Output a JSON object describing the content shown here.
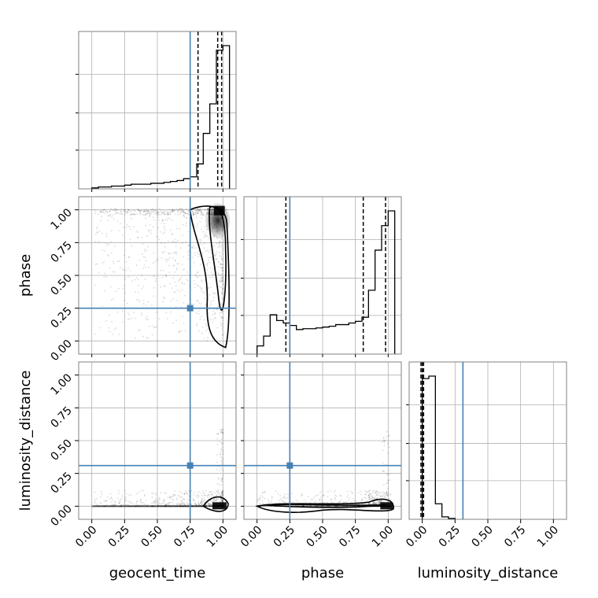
{
  "chart_data": {
    "type": "corner",
    "parameters": [
      {
        "name": "geocent_time",
        "label": "geocent_time",
        "truth": 0.75,
        "range": [
          -0.1,
          1.1
        ],
        "quantiles": [
          0.81,
          0.96,
          0.99
        ]
      },
      {
        "name": "phase",
        "label": "phase",
        "truth": 0.25,
        "range": [
          -0.1,
          1.1
        ],
        "quantiles": [
          0.22,
          0.81,
          0.98
        ]
      },
      {
        "name": "luminosity_distance",
        "label": "luminosity_distance",
        "truth": 0.31,
        "range": [
          -0.1,
          1.1
        ],
        "quantiles": [
          -0.01,
          0.0,
          0.01
        ]
      }
    ],
    "tick_values": [
      0.0,
      0.25,
      0.5,
      0.75,
      1.0
    ],
    "tick_labels": [
      "0.00",
      "0.25",
      "0.50",
      "0.75",
      "1.00"
    ],
    "hist_bins": {
      "geocent_time": {
        "edges": [
          0.0,
          0.05,
          0.1,
          0.15,
          0.2,
          0.25,
          0.3,
          0.35,
          0.4,
          0.45,
          0.5,
          0.55,
          0.6,
          0.65,
          0.7,
          0.75,
          0.8,
          0.85,
          0.9,
          0.95,
          1.0,
          1.05
        ],
        "counts": [
          1,
          2,
          2,
          3,
          3,
          4,
          5,
          5,
          5,
          6,
          6,
          7,
          8,
          9,
          11,
          13,
          27,
          60,
          92,
          150,
          155
        ]
      },
      "phase": {
        "edges": [
          0.0,
          0.05,
          0.1,
          0.15,
          0.2,
          0.25,
          0.3,
          0.35,
          0.4,
          0.45,
          0.5,
          0.55,
          0.6,
          0.65,
          0.7,
          0.75,
          0.8,
          0.85,
          0.9,
          0.95,
          1.0,
          1.05
        ],
        "counts": [
          10,
          22,
          48,
          41,
          38,
          35,
          30,
          31,
          31,
          32,
          33,
          34,
          36,
          36,
          38,
          40,
          45,
          78,
          127,
          157,
          175
        ]
      },
      "luminosity_distance": {
        "edges": [
          0.0,
          0.05,
          0.1,
          0.15,
          0.2,
          0.25
        ],
        "counts": [
          172,
          175,
          19,
          3,
          1
        ]
      }
    },
    "grid": true,
    "truth_color": "#4682b4",
    "line_color": "#000000"
  }
}
